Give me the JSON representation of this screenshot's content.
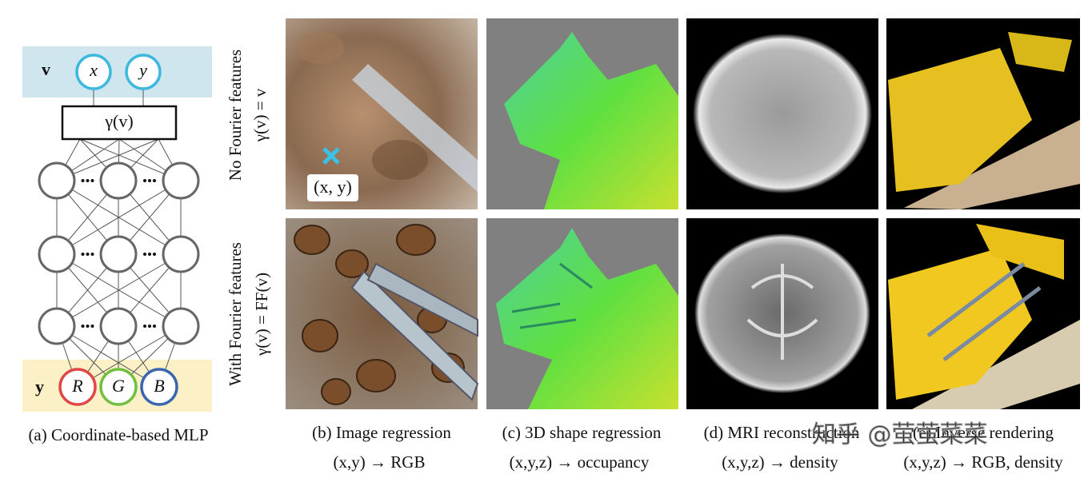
{
  "mlp": {
    "input_label": "v",
    "inputs": [
      "x",
      "y"
    ],
    "encoding": "γ(v)",
    "output_label": "y",
    "outputs": [
      "R",
      "G",
      "B"
    ],
    "caption": "(a) Coordinate-based MLP"
  },
  "rows": [
    {
      "title": "No Fourier features",
      "formula": "γ(v) = v"
    },
    {
      "title": "With Fourier features",
      "formula": "γ(v) = FF(v)"
    }
  ],
  "point_label": "(x, y)",
  "columns": [
    {
      "caption": "(b) Image regression",
      "mapping": "(x,y) → RGB"
    },
    {
      "caption": "(c) 3D shape regression",
      "mapping": "(x,y,z) → occupancy"
    },
    {
      "caption": "(d) MRI reconstruction",
      "mapping": "(x,y,z) → density"
    },
    {
      "caption": "(e) Inverse rendering",
      "mapping": "(x,y,z) → RGB, density"
    }
  ],
  "watermark": "知乎 @萤萤菜菜"
}
